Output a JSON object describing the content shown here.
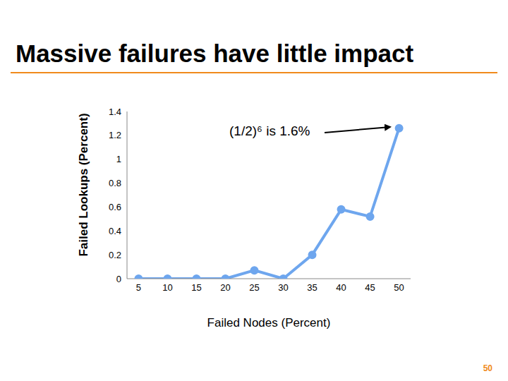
{
  "chart_data": {
    "type": "line",
    "title": "Massive failures have little impact",
    "x_label": "Failed Nodes (Percent)",
    "y_label": "Failed Lookups (Percent)",
    "x": [
      5,
      10,
      15,
      20,
      25,
      30,
      35,
      40,
      45,
      50
    ],
    "values": [
      0,
      0,
      0,
      0,
      0.07,
      0,
      0.2,
      0.58,
      0.52,
      1.26
    ],
    "color": "#6ea6ee",
    "xlim": [
      3,
      52
    ],
    "xticks": [
      5,
      10,
      15,
      20,
      25,
      30,
      35,
      40,
      45,
      50
    ],
    "ylim": [
      0,
      1.4
    ],
    "yticks": [
      0,
      0.2,
      0.4,
      0.6,
      0.8,
      1,
      1.2,
      1.4
    ],
    "grid": false,
    "marker": "circle",
    "annotation": "(1/2)⁶ is 1.6%",
    "page_number": "50"
  }
}
